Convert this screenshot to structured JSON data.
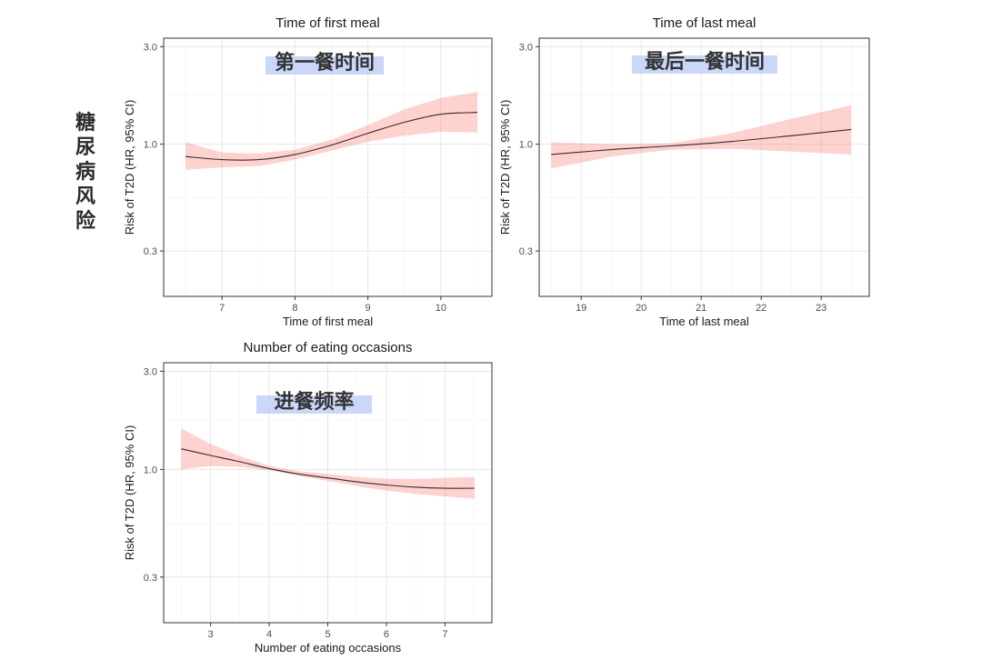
{
  "side_label": [
    "糖",
    "尿",
    "病",
    "风",
    "险"
  ],
  "chart_data": [
    {
      "type": "line",
      "title": "Time of first meal",
      "xlabel": "Time of first meal",
      "ylabel": "Risk of T2D (HR, 95% CI)",
      "annotation": "第一餐时间",
      "yscale": "log",
      "ylim": [
        0.18,
        3.3
      ],
      "yticks": [
        3.0,
        1.0,
        0.3
      ],
      "ytick_labels": [
        "3.0",
        "1.0",
        "0.3"
      ],
      "xlim": [
        6.2,
        10.7
      ],
      "xticks": [
        7,
        8,
        9,
        10
      ],
      "xtick_labels": [
        "7",
        "8",
        "9",
        "10"
      ],
      "grid": true,
      "series": [
        {
          "name": "HR",
          "x": [
            6.5,
            7.0,
            7.5,
            8.0,
            8.5,
            9.0,
            9.5,
            10.0,
            10.5
          ],
          "y": [
            0.87,
            0.84,
            0.84,
            0.89,
            0.99,
            1.13,
            1.28,
            1.4,
            1.43
          ],
          "lower": [
            0.75,
            0.77,
            0.78,
            0.84,
            0.93,
            1.03,
            1.1,
            1.15,
            1.14
          ],
          "upper": [
            1.02,
            0.91,
            0.9,
            0.94,
            1.05,
            1.24,
            1.48,
            1.68,
            1.8
          ]
        }
      ]
    },
    {
      "type": "line",
      "title": "Time of last meal",
      "xlabel": "Time of last meal",
      "ylabel": "Risk of T2D (HR, 95% CI)",
      "annotation": "最后一餐时间",
      "yscale": "log",
      "ylim": [
        0.18,
        3.3
      ],
      "yticks": [
        3.0,
        1.0,
        0.3
      ],
      "ytick_labels": [
        "3.0",
        "1.0",
        "0.3"
      ],
      "xlim": [
        18.3,
        23.8
      ],
      "xticks": [
        19,
        20,
        21,
        22,
        23
      ],
      "xtick_labels": [
        "19",
        "20",
        "21",
        "22",
        "23"
      ],
      "grid": true,
      "series": [
        {
          "name": "HR",
          "x": [
            18.5,
            19.5,
            20.5,
            21.5,
            22.5,
            23.5
          ],
          "y": [
            0.89,
            0.94,
            0.98,
            1.03,
            1.1,
            1.18
          ],
          "lower": [
            0.76,
            0.87,
            0.94,
            0.95,
            0.92,
            0.89
          ],
          "upper": [
            1.02,
            1.0,
            1.01,
            1.13,
            1.33,
            1.55
          ]
        }
      ]
    },
    {
      "type": "line",
      "title": "Number of eating occasions",
      "xlabel": "Number of eating occasions",
      "ylabel": "Risk of T2D (HR, 95% CI)",
      "annotation": "进餐频率",
      "yscale": "log",
      "ylim": [
        0.18,
        3.3
      ],
      "yticks": [
        3.0,
        1.0,
        0.3
      ],
      "ytick_labels": [
        "3.0",
        "1.0",
        "0.3"
      ],
      "xlim": [
        2.2,
        7.8
      ],
      "xticks": [
        3,
        4,
        5,
        6,
        7
      ],
      "xtick_labels": [
        "3",
        "4",
        "5",
        "6",
        "7"
      ],
      "grid": true,
      "series": [
        {
          "name": "HR",
          "x": [
            2.5,
            3.0,
            3.5,
            4.0,
            4.5,
            5.0,
            5.5,
            6.0,
            6.5,
            7.0,
            7.5
          ],
          "y": [
            1.26,
            1.17,
            1.09,
            1.01,
            0.95,
            0.91,
            0.87,
            0.84,
            0.82,
            0.81,
            0.81
          ],
          "lower": [
            1.0,
            1.04,
            1.03,
            0.99,
            0.93,
            0.88,
            0.83,
            0.79,
            0.76,
            0.74,
            0.72
          ],
          "upper": [
            1.58,
            1.33,
            1.16,
            1.04,
            0.98,
            0.95,
            0.92,
            0.9,
            0.9,
            0.91,
            0.92
          ]
        }
      ]
    }
  ]
}
